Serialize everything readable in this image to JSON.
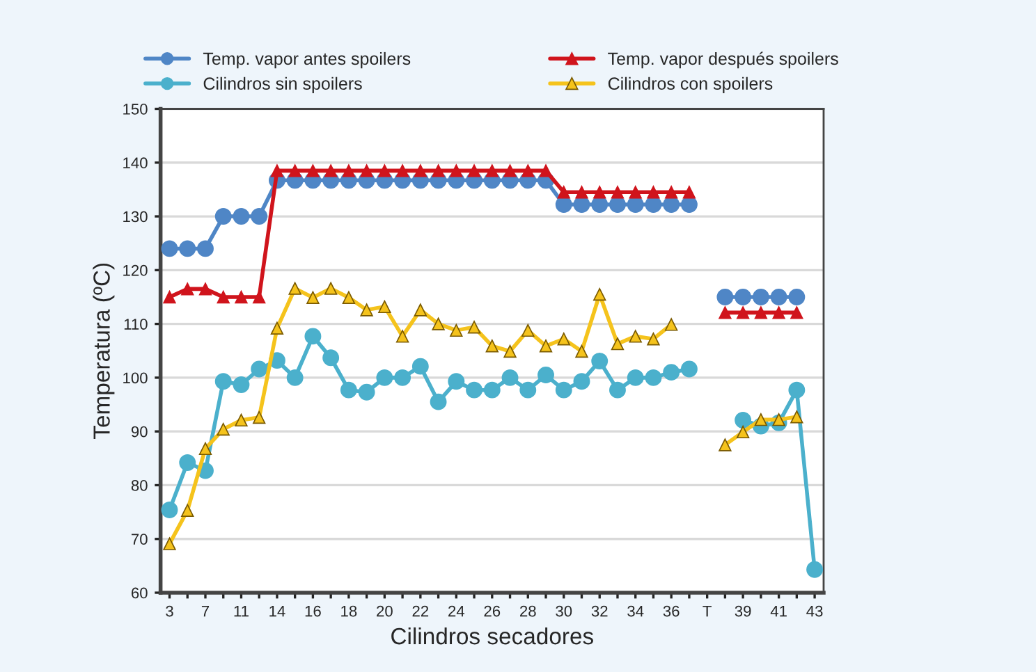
{
  "chart_data": {
    "type": "line",
    "xlabel": "Cilindros secadores",
    "ylabel": "Temperatura (ºC)",
    "categories": [
      "3",
      null,
      "7",
      null,
      "11",
      null,
      "14",
      null,
      "16",
      null,
      "18",
      null,
      "20",
      null,
      "22",
      null,
      "24",
      null,
      "26",
      null,
      "28",
      null,
      "30",
      null,
      "32",
      null,
      "34",
      null,
      "36",
      null,
      "T",
      null,
      "39",
      null,
      "41",
      null,
      "43"
    ],
    "ylim": [
      60,
      150
    ],
    "yticks": [
      60,
      70,
      80,
      90,
      100,
      110,
      120,
      130,
      140,
      150
    ],
    "grid": "y",
    "legend": "top",
    "line_style": "solid",
    "series": [
      {
        "name": "Temp. vapor antes spoilers",
        "color": "#4f86c6",
        "marker": "circle",
        "values": [
          124,
          124,
          124,
          130,
          130,
          130,
          136.7,
          136.7,
          136.7,
          136.7,
          136.7,
          136.7,
          136.7,
          136.7,
          136.7,
          136.7,
          136.7,
          136.7,
          136.7,
          136.7,
          136.7,
          136.7,
          132.2,
          132.2,
          132.2,
          132.2,
          132.2,
          132.2,
          132.2,
          132.2,
          null,
          115,
          115,
          115,
          115,
          115,
          null
        ]
      },
      {
        "name": "Temp. vapor después spoilers",
        "color": "#d0141c",
        "marker": "triangle",
        "values": [
          115,
          116.5,
          116.5,
          115,
          115,
          115,
          138.5,
          138.5,
          138.5,
          138.5,
          138.5,
          138.5,
          138.5,
          138.5,
          138.5,
          138.5,
          138.5,
          138.5,
          138.5,
          138.5,
          138.5,
          138.5,
          134.5,
          134.5,
          134.5,
          134.5,
          134.5,
          134.5,
          134.5,
          134.5,
          null,
          112.1,
          112.1,
          112.1,
          112.1,
          112.1,
          null
        ]
      },
      {
        "name": "Cilindros sin spoilers",
        "color": "#4bb0cc",
        "marker": "circle",
        "values": [
          75.4,
          84.2,
          82.7,
          99.3,
          98.7,
          101.6,
          103.2,
          100,
          107.7,
          103.7,
          97.7,
          97.3,
          100,
          100,
          102.1,
          95.5,
          99.3,
          97.7,
          97.7,
          100,
          97.7,
          100.5,
          97.7,
          99.3,
          103.1,
          97.7,
          100,
          100,
          101,
          101.6,
          null,
          null,
          92.1,
          91,
          91.6,
          97.7,
          64.3
        ]
      },
      {
        "name": "Cilindros con spoilers",
        "color": "#f5c31c",
        "marker": "triangle",
        "values": [
          69.1,
          75.3,
          86.8,
          90.4,
          92.1,
          92.6,
          109.2,
          116.6,
          114.9,
          116.6,
          114.9,
          112.6,
          113.2,
          107.7,
          112.6,
          110,
          108.8,
          109.4,
          105.9,
          104.9,
          108.8,
          105.9,
          107.2,
          104.9,
          115.5,
          106.3,
          107.7,
          107.2,
          109.9,
          null,
          null,
          87.5,
          89.9,
          92.2,
          92.2,
          92.7,
          null
        ]
      }
    ]
  }
}
